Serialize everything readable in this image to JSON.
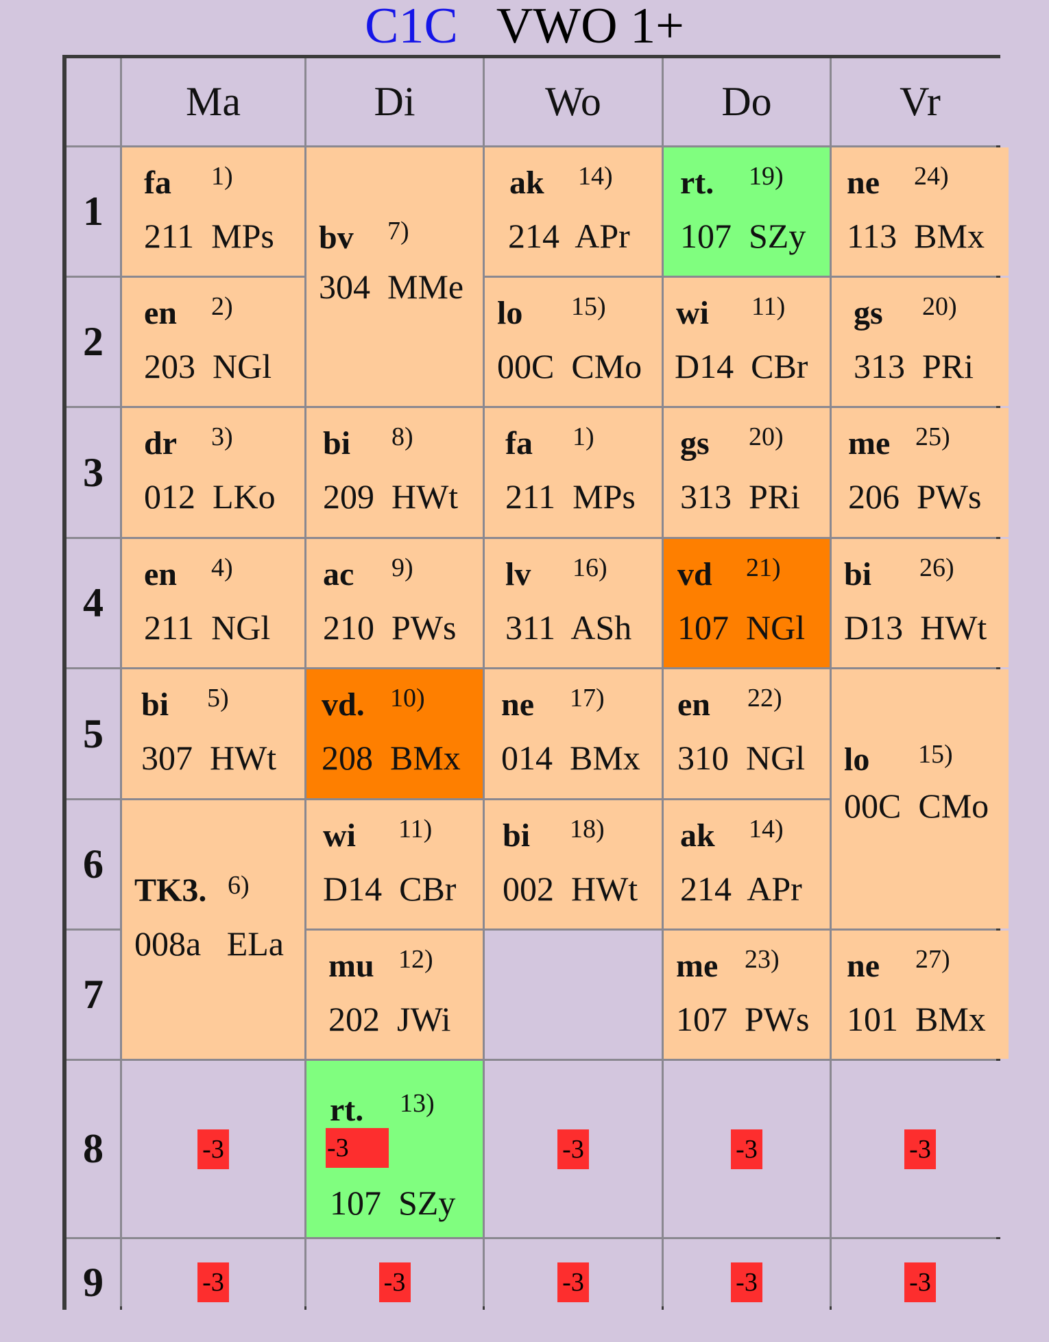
{
  "title": {
    "class_code": "C1C",
    "level": "VWO 1+"
  },
  "days": [
    "Ma",
    "Di",
    "Wo",
    "Do",
    "Vr"
  ],
  "periods": [
    "1",
    "2",
    "3",
    "4",
    "5",
    "6",
    "7",
    "8",
    "9"
  ],
  "lessons": {
    "ma1": {
      "subject": "fa",
      "note": "1)",
      "room": "211  MPs"
    },
    "ma2": {
      "subject": "en",
      "note": "2)",
      "room": "203  NGl"
    },
    "ma3": {
      "subject": "dr",
      "note": "3)",
      "room": "012  LKo"
    },
    "ma4": {
      "subject": "en",
      "note": "4)",
      "room": "211  NGl"
    },
    "ma5": {
      "subject": "bi",
      "note": "5)",
      "room": "307  HWt"
    },
    "ma6": {
      "subject": "TK3.",
      "note": "6)",
      "room": "008a   ELa"
    },
    "di1": {
      "subject": "bv",
      "note": "7)",
      "room": "304  MMe"
    },
    "di3": {
      "subject": "bi",
      "note": "8)",
      "room": "209  HWt"
    },
    "di4": {
      "subject": "ac",
      "note": "9)",
      "room": "210  PWs"
    },
    "di5": {
      "subject": "vd.",
      "note": "10)",
      "room": "208  BMx"
    },
    "di6": {
      "subject": "wi",
      "note": "11)",
      "room": "D14  CBr"
    },
    "di7": {
      "subject": "mu",
      "note": "12)",
      "room": "202  JWi"
    },
    "di8": {
      "subject": "rt.",
      "note": "13)",
      "room": "107  SZy"
    },
    "wo1": {
      "subject": "ak",
      "note": "14)",
      "room": "214  APr"
    },
    "wo2": {
      "subject": "lo",
      "note": "15)",
      "room": "00C  CMo"
    },
    "wo3": {
      "subject": "fa",
      "note": "1)",
      "room": "211  MPs"
    },
    "wo4": {
      "subject": "lv",
      "note": "16)",
      "room": "311  ASh"
    },
    "wo5": {
      "subject": "ne",
      "note": "17)",
      "room": "014  BMx"
    },
    "wo6": {
      "subject": "bi",
      "note": "18)",
      "room": "002  HWt"
    },
    "do1": {
      "subject": "rt.",
      "note": "19)",
      "room": "107  SZy"
    },
    "do2": {
      "subject": "wi",
      "note": "11)",
      "room": "D14  CBr"
    },
    "do3": {
      "subject": "gs",
      "note": "20)",
      "room": "313  PRi"
    },
    "do4": {
      "subject": "vd",
      "note": "21)",
      "room": "107  NGl"
    },
    "do5": {
      "subject": "en",
      "note": "22)",
      "room": "310  NGl"
    },
    "do6": {
      "subject": "ak",
      "note": "14)",
      "room": "214  APr"
    },
    "do7": {
      "subject": "me",
      "note": "23)",
      "room": "107  PWs"
    },
    "vr1": {
      "subject": "ne",
      "note": "24)",
      "room": "113  BMx"
    },
    "vr2": {
      "subject": "gs",
      "note": "20)",
      "room": "313  PRi"
    },
    "vr3": {
      "subject": "me",
      "note": "25)",
      "room": "206  PWs"
    },
    "vr4": {
      "subject": "bi",
      "note": "26)",
      "room": "D13  HWt"
    },
    "vr5": {
      "subject": "lo",
      "note": "15)",
      "room": "00C  CMo"
    },
    "vr7": {
      "subject": "ne",
      "note": "27)",
      "room": "101  BMx"
    }
  },
  "marks": {
    "ma8": "-3",
    "di8": "-3",
    "wo8": "-3",
    "do8": "-3",
    "vr8": "-3",
    "ma9": "-3",
    "di9": "-3",
    "wo9": "-3",
    "do9": "-3",
    "vr9": "-3"
  },
  "colors": {
    "background": "#d3c6de",
    "lesson": "#fecb9a",
    "changed": "#fe7f00",
    "highlight": "#80fe7f",
    "mark": "#fd2e2e",
    "class_code": "#1515e8"
  }
}
